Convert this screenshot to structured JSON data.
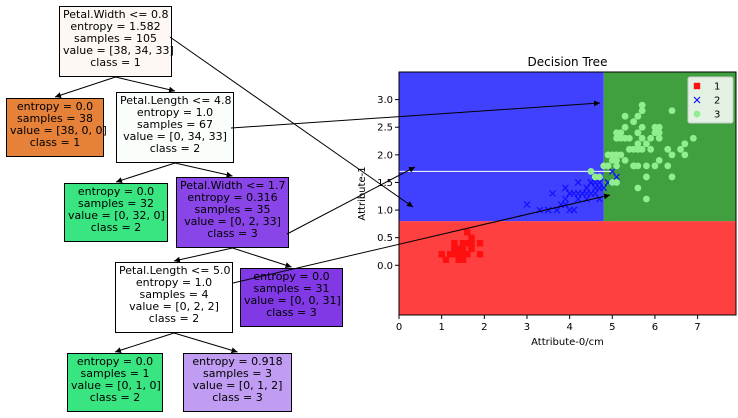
{
  "tree": {
    "nodes": [
      {
        "id": "n0",
        "lines": [
          "Petal.Width <= 0.8",
          "entropy = 1.582",
          "samples = 105",
          "value = [38, 34, 33]",
          "class = 1"
        ],
        "fill": "#fdf8f3"
      },
      {
        "id": "n1",
        "lines": [
          "entropy = 0.0",
          "samples = 38",
          "value = [38, 0, 0]",
          "class = 1"
        ],
        "fill": "#e58139"
      },
      {
        "id": "n2",
        "lines": [
          "Petal.Length <= 4.8",
          "entropy = 1.0",
          "samples = 67",
          "value = [0, 34, 33]",
          "class = 2"
        ],
        "fill": "#fafefb"
      },
      {
        "id": "n3",
        "lines": [
          "entropy = 0.0",
          "samples = 32",
          "value = [0, 32, 0]",
          "class = 2"
        ],
        "fill": "#39e581"
      },
      {
        "id": "n4",
        "lines": [
          "Petal.Width <= 1.7",
          "entropy = 0.316",
          "samples = 35",
          "value = [0, 2, 33]",
          "class = 3"
        ],
        "fill": "#8945e7"
      },
      {
        "id": "n5",
        "lines": [
          "Petal.Length <= 5.0",
          "entropy = 1.0",
          "samples = 4",
          "value = [0, 2, 2]",
          "class = 2"
        ],
        "fill": "#ffffff"
      },
      {
        "id": "n6",
        "lines": [
          "entropy = 0.0",
          "samples = 31",
          "value = [0, 0, 31]",
          "class = 3"
        ],
        "fill": "#8139e5"
      },
      {
        "id": "n7",
        "lines": [
          "entropy = 0.0",
          "samples = 1",
          "value = [0, 1, 0]",
          "class = 2"
        ],
        "fill": "#39e581"
      },
      {
        "id": "n8",
        "lines": [
          "entropy = 0.918",
          "samples = 3",
          "value = [0, 1, 2]",
          "class = 3"
        ],
        "fill": "#c09cf2"
      }
    ],
    "edges": [
      [
        "n0",
        "n1"
      ],
      [
        "n0",
        "n2"
      ],
      [
        "n2",
        "n3"
      ],
      [
        "n2",
        "n4"
      ],
      [
        "n4",
        "n5"
      ],
      [
        "n4",
        "n6"
      ],
      [
        "n5",
        "n7"
      ],
      [
        "n5",
        "n8"
      ]
    ]
  },
  "chart_data": {
    "type": "scatter",
    "title": "Decision Tree",
    "xlabel": "Attribute-0/cm",
    "ylabel": "Attribute-1",
    "xlim": [
      0,
      7.9
    ],
    "ylim": [
      -0.9,
      3.5
    ],
    "xticks": [
      0,
      1,
      2,
      3,
      4,
      5,
      6,
      7
    ],
    "yticks": [
      0.0,
      0.5,
      1.0,
      1.5,
      2.0,
      2.5,
      3.0
    ],
    "regions": [
      {
        "class": "1",
        "x": [
          0,
          7.9
        ],
        "y": [
          -0.9,
          0.8
        ],
        "color": "#ff4040"
      },
      {
        "class": "2",
        "x": [
          0,
          4.8
        ],
        "y": [
          0.8,
          3.5
        ],
        "color": "#4040ff"
      },
      {
        "class": "3",
        "x": [
          4.8,
          7.9
        ],
        "y": [
          0.8,
          3.5
        ],
        "color": "#40a040"
      },
      {
        "class": "3",
        "x": [
          4.8,
          5.0
        ],
        "y": [
          0.8,
          1.7
        ],
        "color": "#40a040"
      }
    ],
    "splits": [
      {
        "orient": "h",
        "x": [
          0,
          5.0
        ],
        "y": 1.7,
        "color": "#ffffff"
      }
    ],
    "legend": {
      "position": "top-right",
      "entries": [
        "1",
        "2",
        "3"
      ]
    },
    "series": [
      {
        "name": "1",
        "marker": "s",
        "color": "#ff1010",
        "points": [
          [
            1.4,
            0.2
          ],
          [
            1.3,
            0.2
          ],
          [
            1.5,
            0.2
          ],
          [
            1.4,
            0.3
          ],
          [
            1.7,
            0.4
          ],
          [
            1.5,
            0.1
          ],
          [
            1.5,
            0.2
          ],
          [
            1.6,
            0.2
          ],
          [
            1.4,
            0.1
          ],
          [
            1.1,
            0.1
          ],
          [
            1.2,
            0.2
          ],
          [
            1.5,
            0.4
          ],
          [
            1.3,
            0.4
          ],
          [
            1.4,
            0.3
          ],
          [
            1.7,
            0.3
          ],
          [
            1.5,
            0.3
          ],
          [
            1.0,
            0.2
          ],
          [
            1.7,
            0.5
          ],
          [
            1.9,
            0.2
          ],
          [
            1.6,
            0.4
          ],
          [
            1.2,
            0.2
          ],
          [
            1.3,
            0.3
          ],
          [
            1.6,
            0.6
          ],
          [
            1.9,
            0.4
          ],
          [
            1.4,
            0.2
          ],
          [
            1.6,
            0.2
          ],
          [
            1.5,
            0.2
          ],
          [
            1.4,
            0.2
          ],
          [
            1.3,
            0.2
          ],
          [
            1.5,
            0.2
          ],
          [
            1.4,
            0.2
          ],
          [
            1.6,
            0.2
          ],
          [
            1.5,
            0.1
          ],
          [
            1.4,
            0.1
          ],
          [
            1.3,
            0.2
          ],
          [
            1.5,
            0.2
          ],
          [
            1.3,
            0.3
          ],
          [
            1.5,
            0.2
          ]
        ]
      },
      {
        "name": "2",
        "marker": "x",
        "color": "#1010ff",
        "points": [
          [
            4.7,
            1.4
          ],
          [
            4.5,
            1.5
          ],
          [
            4.9,
            1.5
          ],
          [
            4.0,
            1.3
          ],
          [
            4.6,
            1.5
          ],
          [
            4.5,
            1.3
          ],
          [
            4.7,
            1.6
          ],
          [
            3.3,
            1.0
          ],
          [
            4.6,
            1.3
          ],
          [
            3.9,
            1.4
          ],
          [
            3.5,
            1.0
          ],
          [
            4.2,
            1.5
          ],
          [
            4.0,
            1.0
          ],
          [
            4.7,
            1.4
          ],
          [
            3.6,
            1.3
          ],
          [
            4.4,
            1.4
          ],
          [
            4.5,
            1.5
          ],
          [
            4.1,
            1.0
          ],
          [
            4.5,
            1.5
          ],
          [
            3.9,
            1.1
          ],
          [
            4.8,
            1.8
          ],
          [
            4.0,
            1.3
          ],
          [
            4.9,
            1.5
          ],
          [
            4.7,
            1.2
          ],
          [
            4.3,
            1.3
          ],
          [
            4.4,
            1.4
          ],
          [
            4.8,
            1.4
          ],
          [
            5.0,
            1.7
          ],
          [
            4.5,
            1.5
          ],
          [
            3.5,
            1.0
          ],
          [
            3.8,
            1.1
          ],
          [
            3.7,
            1.0
          ],
          [
            3.9,
            1.2
          ],
          [
            5.1,
            1.6
          ],
          [
            4.5,
            1.5
          ],
          [
            4.7,
            1.5
          ],
          [
            4.4,
            1.3
          ],
          [
            4.1,
            1.3
          ],
          [
            4.0,
            1.3
          ],
          [
            4.4,
            1.2
          ],
          [
            4.6,
            1.4
          ],
          [
            3.0,
            1.1
          ],
          [
            4.2,
            1.3
          ],
          [
            4.2,
            1.2
          ],
          [
            4.3,
            1.3
          ]
        ]
      },
      {
        "name": "3",
        "marker": "o",
        "color": "#90ee90",
        "points": [
          [
            6.0,
            2.5
          ],
          [
            5.1,
            1.9
          ],
          [
            5.9,
            2.1
          ],
          [
            5.6,
            1.8
          ],
          [
            5.8,
            2.2
          ],
          [
            6.6,
            2.1
          ],
          [
            4.5,
            1.7
          ],
          [
            6.3,
            1.8
          ],
          [
            5.8,
            1.8
          ],
          [
            6.1,
            2.5
          ],
          [
            5.1,
            2.0
          ],
          [
            5.3,
            1.9
          ],
          [
            5.5,
            2.1
          ],
          [
            5.0,
            2.0
          ],
          [
            5.1,
            2.4
          ],
          [
            5.3,
            2.3
          ],
          [
            5.5,
            1.8
          ],
          [
            6.7,
            2.2
          ],
          [
            6.9,
            2.3
          ],
          [
            5.0,
            1.5
          ],
          [
            5.7,
            2.3
          ],
          [
            4.9,
            2.0
          ],
          [
            6.7,
            2.0
          ],
          [
            4.9,
            1.8
          ],
          [
            5.7,
            2.1
          ],
          [
            6.0,
            1.8
          ],
          [
            4.8,
            1.8
          ],
          [
            4.9,
            1.8
          ],
          [
            5.6,
            2.1
          ],
          [
            5.8,
            1.6
          ],
          [
            6.1,
            1.9
          ],
          [
            6.4,
            2.0
          ],
          [
            5.6,
            2.2
          ],
          [
            5.1,
            1.5
          ],
          [
            5.6,
            1.4
          ],
          [
            6.1,
            2.3
          ],
          [
            5.6,
            2.4
          ],
          [
            5.5,
            1.8
          ],
          [
            4.8,
            1.8
          ],
          [
            5.4,
            2.1
          ],
          [
            5.6,
            2.4
          ],
          [
            5.1,
            2.3
          ],
          [
            5.9,
            2.3
          ],
          [
            5.7,
            2.5
          ],
          [
            5.2,
            2.3
          ],
          [
            5.0,
            1.9
          ],
          [
            5.2,
            2.0
          ],
          [
            5.4,
            2.3
          ],
          [
            5.1,
            1.8
          ],
          [
            6.4,
            1.6
          ],
          [
            5.6,
            2.7
          ],
          [
            6.3,
            2.1
          ],
          [
            4.6,
            1.6
          ],
          [
            5.8,
            1.2
          ],
          [
            5.3,
            2.5
          ],
          [
            5.7,
            2.8
          ],
          [
            6.0,
            2.4
          ],
          [
            5.3,
            2.7
          ],
          [
            5.5,
            2.6
          ],
          [
            6.4,
            2.8
          ],
          [
            5.7,
            2.9
          ],
          [
            5.2,
            2.4
          ],
          [
            6.1,
            2.4
          ],
          [
            4.7,
            1.6
          ]
        ]
      }
    ]
  }
}
